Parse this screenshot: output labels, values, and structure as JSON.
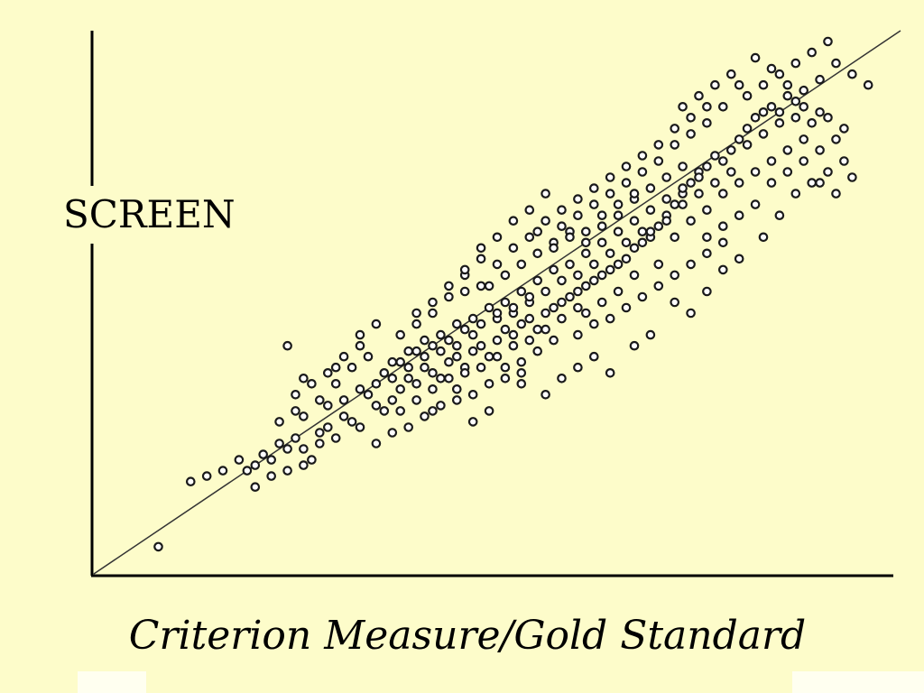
{
  "chart_data": {
    "type": "scatter",
    "title": "",
    "xlabel": "Criterion Measure/Gold Standard",
    "ylabel": "SCREEN",
    "xlim": [
      0,
      100
    ],
    "ylim": [
      0,
      100
    ],
    "grid": false,
    "trend_line": {
      "x": [
        0,
        100
      ],
      "y": [
        0,
        100
      ]
    },
    "colors": {
      "background": "#fdfcca",
      "axis": "#000000",
      "marker_stroke": "#1a1a1a",
      "marker_fill": "#ffffff",
      "trend": "#333333"
    },
    "series": [
      {
        "points": [
          [
            8,
            5
          ],
          [
            12,
            17
          ],
          [
            19,
            19
          ],
          [
            20,
            20
          ],
          [
            21,
            22
          ],
          [
            22,
            21
          ],
          [
            23,
            24
          ],
          [
            24,
            23
          ],
          [
            25,
            25
          ],
          [
            26,
            20
          ],
          [
            27,
            21
          ],
          [
            28,
            26
          ],
          [
            29,
            27
          ],
          [
            30,
            25
          ],
          [
            31,
            29
          ],
          [
            32,
            28
          ],
          [
            33,
            27
          ],
          [
            34,
            33
          ],
          [
            35,
            31
          ],
          [
            36,
            30
          ],
          [
            37,
            32
          ],
          [
            38,
            34
          ],
          [
            39,
            36
          ],
          [
            40,
            35
          ],
          [
            41,
            38
          ],
          [
            42,
            37
          ],
          [
            43,
            36
          ],
          [
            44,
            39
          ],
          [
            45,
            40
          ],
          [
            46,
            38
          ],
          [
            47,
            41
          ],
          [
            48,
            42
          ],
          [
            49,
            40
          ],
          [
            50,
            43
          ],
          [
            51,
            45
          ],
          [
            52,
            44
          ],
          [
            53,
            46
          ],
          [
            54,
            47
          ],
          [
            55,
            45
          ],
          [
            56,
            48
          ],
          [
            57,
            49
          ],
          [
            58,
            50
          ],
          [
            59,
            51
          ],
          [
            60,
            52
          ],
          [
            61,
            53
          ],
          [
            62,
            54
          ],
          [
            63,
            55
          ],
          [
            64,
            56
          ],
          [
            65,
            57
          ],
          [
            66,
            58
          ],
          [
            67,
            60
          ],
          [
            68,
            61
          ],
          [
            69,
            62
          ],
          [
            70,
            64
          ],
          [
            71,
            66
          ],
          [
            72,
            68
          ],
          [
            73,
            70
          ],
          [
            74,
            72
          ],
          [
            75,
            74
          ],
          [
            76,
            75
          ],
          [
            77,
            77
          ],
          [
            78,
            76
          ],
          [
            79,
            78
          ],
          [
            80,
            80
          ],
          [
            81,
            82
          ],
          [
            82,
            84
          ],
          [
            83,
            85
          ],
          [
            84,
            86
          ],
          [
            85,
            85
          ],
          [
            86,
            88
          ],
          [
            87,
            87
          ],
          [
            88,
            86
          ],
          [
            89,
            83
          ],
          [
            90,
            85
          ],
          [
            91,
            84
          ],
          [
            92,
            80
          ],
          [
            93,
            82
          ],
          [
            24,
            42
          ],
          [
            26,
            36
          ],
          [
            30,
            38
          ],
          [
            33,
            44
          ],
          [
            35,
            46
          ],
          [
            38,
            30
          ],
          [
            40,
            32
          ],
          [
            42,
            30
          ],
          [
            47,
            28
          ],
          [
            49,
            30
          ],
          [
            53,
            35
          ],
          [
            56,
            33
          ],
          [
            58,
            36
          ],
          [
            60,
            38
          ],
          [
            62,
            40
          ],
          [
            64,
            37
          ],
          [
            67,
            42
          ],
          [
            69,
            44
          ],
          [
            72,
            50
          ],
          [
            74,
            48
          ],
          [
            76,
            52
          ],
          [
            78,
            56
          ],
          [
            80,
            58
          ],
          [
            83,
            62
          ],
          [
            85,
            66
          ],
          [
            87,
            70
          ],
          [
            89,
            72
          ],
          [
            91,
            74
          ],
          [
            93,
            76
          ],
          [
            46,
            55
          ],
          [
            48,
            58
          ],
          [
            50,
            57
          ],
          [
            52,
            60
          ],
          [
            54,
            62
          ],
          [
            56,
            65
          ],
          [
            58,
            64
          ],
          [
            60,
            66
          ],
          [
            62,
            68
          ],
          [
            64,
            70
          ],
          [
            66,
            72
          ],
          [
            68,
            74
          ],
          [
            70,
            76
          ],
          [
            72,
            79
          ],
          [
            74,
            81
          ],
          [
            76,
            83
          ],
          [
            78,
            86
          ],
          [
            80,
            90
          ],
          [
            82,
            95
          ],
          [
            84,
            93
          ],
          [
            86,
            90
          ],
          [
            88,
            89
          ],
          [
            90,
            91
          ],
          [
            92,
            94
          ],
          [
            94,
            92
          ],
          [
            96,
            90
          ],
          [
            37,
            39
          ],
          [
            39,
            41
          ],
          [
            41,
            43
          ],
          [
            43,
            44
          ],
          [
            45,
            46
          ],
          [
            47,
            47
          ],
          [
            49,
            49
          ],
          [
            51,
            50
          ],
          [
            53,
            52
          ],
          [
            55,
            54
          ],
          [
            57,
            56
          ],
          [
            59,
            57
          ],
          [
            61,
            59
          ],
          [
            63,
            61
          ],
          [
            65,
            63
          ],
          [
            67,
            65
          ],
          [
            69,
            67
          ],
          [
            71,
            69
          ],
          [
            73,
            71
          ],
          [
            75,
            73
          ],
          [
            55,
            63
          ],
          [
            57,
            61
          ],
          [
            59,
            63
          ],
          [
            61,
            61
          ],
          [
            63,
            64
          ],
          [
            65,
            66
          ],
          [
            67,
            69
          ],
          [
            69,
            71
          ],
          [
            71,
            73
          ],
          [
            73,
            75
          ],
          [
            49,
            53
          ],
          [
            51,
            55
          ],
          [
            53,
            57
          ],
          [
            55,
            59
          ],
          [
            57,
            60
          ],
          [
            59,
            62
          ],
          [
            61,
            63
          ],
          [
            63,
            66
          ],
          [
            65,
            68
          ],
          [
            67,
            70
          ],
          [
            50,
            47
          ],
          [
            52,
            48
          ],
          [
            54,
            50
          ],
          [
            56,
            52
          ],
          [
            58,
            54
          ],
          [
            60,
            55
          ],
          [
            62,
            57
          ],
          [
            64,
            59
          ],
          [
            66,
            61
          ],
          [
            68,
            63
          ],
          [
            36,
            37
          ],
          [
            38,
            39
          ],
          [
            40,
            41
          ],
          [
            42,
            42
          ],
          [
            44,
            43
          ],
          [
            46,
            45
          ],
          [
            48,
            46
          ],
          [
            50,
            48
          ],
          [
            52,
            49
          ],
          [
            54,
            51
          ],
          [
            29,
            31
          ],
          [
            31,
            32
          ],
          [
            33,
            34
          ],
          [
            35,
            35
          ],
          [
            37,
            36
          ],
          [
            39,
            38
          ],
          [
            41,
            40
          ],
          [
            43,
            41
          ],
          [
            45,
            42
          ],
          [
            47,
            44
          ],
          [
            81,
            79
          ],
          [
            83,
            81
          ],
          [
            85,
            83
          ],
          [
            87,
            84
          ],
          [
            79,
            74
          ],
          [
            77,
            72
          ],
          [
            75,
            70
          ],
          [
            73,
            68
          ],
          [
            71,
            65
          ],
          [
            69,
            63
          ],
          [
            44,
            51
          ],
          [
            46,
            52
          ],
          [
            48,
            53
          ],
          [
            42,
            48
          ],
          [
            40,
            46
          ],
          [
            58,
            67
          ],
          [
            60,
            69
          ],
          [
            62,
            71
          ],
          [
            64,
            73
          ],
          [
            66,
            75
          ],
          [
            68,
            77
          ],
          [
            70,
            79
          ],
          [
            72,
            82
          ],
          [
            74,
            84
          ],
          [
            76,
            86
          ],
          [
            65,
            52
          ],
          [
            67,
            55
          ],
          [
            70,
            57
          ],
          [
            63,
            50
          ],
          [
            61,
            48
          ],
          [
            55,
            41
          ],
          [
            57,
            43
          ],
          [
            53,
            39
          ],
          [
            51,
            38
          ],
          [
            45,
            34
          ],
          [
            34,
            40
          ],
          [
            32,
            38
          ],
          [
            30,
            35
          ],
          [
            28,
            32
          ],
          [
            26,
            29
          ],
          [
            25,
            33
          ],
          [
            27,
            35
          ],
          [
            29,
            37
          ],
          [
            31,
            40
          ],
          [
            33,
            42
          ],
          [
            88,
            80
          ],
          [
            90,
            78
          ],
          [
            86,
            78
          ],
          [
            84,
            76
          ],
          [
            82,
            74
          ],
          [
            80,
            72
          ],
          [
            78,
            70
          ],
          [
            76,
            67
          ],
          [
            74,
            65
          ],
          [
            72,
            62
          ],
          [
            20,
            16
          ],
          [
            22,
            18
          ],
          [
            24,
            19
          ],
          [
            26,
            23
          ],
          [
            28,
            24
          ],
          [
            18,
            21
          ],
          [
            16,
            19
          ],
          [
            14,
            18
          ],
          [
            23,
            28
          ],
          [
            25,
            30
          ],
          [
            60,
            44
          ],
          [
            62,
            46
          ],
          [
            64,
            47
          ],
          [
            66,
            49
          ],
          [
            68,
            51
          ],
          [
            70,
            53
          ],
          [
            72,
            55
          ],
          [
            74,
            57
          ],
          [
            76,
            59
          ],
          [
            78,
            61
          ],
          [
            42,
            34
          ],
          [
            44,
            36
          ],
          [
            46,
            37
          ],
          [
            48,
            38
          ],
          [
            50,
            40
          ],
          [
            52,
            42
          ],
          [
            54,
            43
          ],
          [
            56,
            45
          ],
          [
            58,
            47
          ],
          [
            60,
            49
          ],
          [
            38,
            44
          ],
          [
            40,
            48
          ],
          [
            42,
            50
          ],
          [
            44,
            53
          ],
          [
            46,
            56
          ],
          [
            48,
            60
          ],
          [
            50,
            62
          ],
          [
            52,
            65
          ],
          [
            54,
            67
          ],
          [
            56,
            70
          ],
          [
            81,
            88
          ],
          [
            83,
            90
          ],
          [
            85,
            92
          ],
          [
            87,
            94
          ],
          [
            89,
            96
          ],
          [
            91,
            98
          ],
          [
            79,
            92
          ],
          [
            77,
            90
          ],
          [
            75,
            88
          ],
          [
            73,
            86
          ],
          [
            35,
            24
          ],
          [
            37,
            26
          ],
          [
            39,
            27
          ],
          [
            41,
            29
          ],
          [
            43,
            31
          ],
          [
            45,
            32
          ],
          [
            47,
            33
          ],
          [
            49,
            35
          ],
          [
            51,
            36
          ],
          [
            53,
            37
          ],
          [
            84,
            72
          ],
          [
            86,
            74
          ],
          [
            88,
            76
          ],
          [
            90,
            72
          ],
          [
            92,
            70
          ],
          [
            94,
            73
          ],
          [
            82,
            68
          ],
          [
            80,
            66
          ],
          [
            78,
            64
          ],
          [
            76,
            62
          ]
        ]
      }
    ]
  }
}
